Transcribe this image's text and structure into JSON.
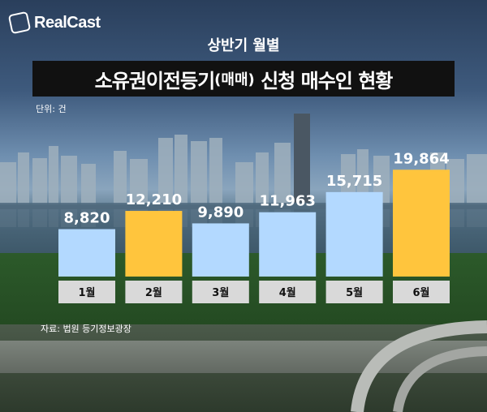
{
  "logo": {
    "text": "RealCast",
    "icon": "realcast-logo-icon"
  },
  "subtitle": "상반기 월별",
  "title": {
    "main": "소유권이전등기",
    "paren": "(매매)",
    "rest": " 신청 매수인 현황"
  },
  "unit": "단위: 건",
  "source": "자료: 법원 등기정보광장",
  "colors": {
    "blue": "#b3d9ff",
    "orange": "#ffc53d",
    "label_bg": "#d9d9d9",
    "title_bg": "#111111"
  },
  "chart_data": {
    "type": "bar",
    "categories": [
      "1월",
      "2월",
      "3월",
      "4월",
      "5월",
      "6월"
    ],
    "values": [
      8820,
      12210,
      9890,
      11963,
      15715,
      19864
    ],
    "value_labels": [
      "8,820",
      "12,210",
      "9,890",
      "11,963",
      "15,715",
      "19,864"
    ],
    "bar_colors": [
      "#b3d9ff",
      "#ffc53d",
      "#b3d9ff",
      "#b3d9ff",
      "#b3d9ff",
      "#ffc53d"
    ],
    "title": "소유권이전등기(매매) 신청 매수인 현황",
    "xlabel": "",
    "ylabel": "",
    "ylim": [
      0,
      20000
    ],
    "grid": false,
    "legend": "none"
  }
}
